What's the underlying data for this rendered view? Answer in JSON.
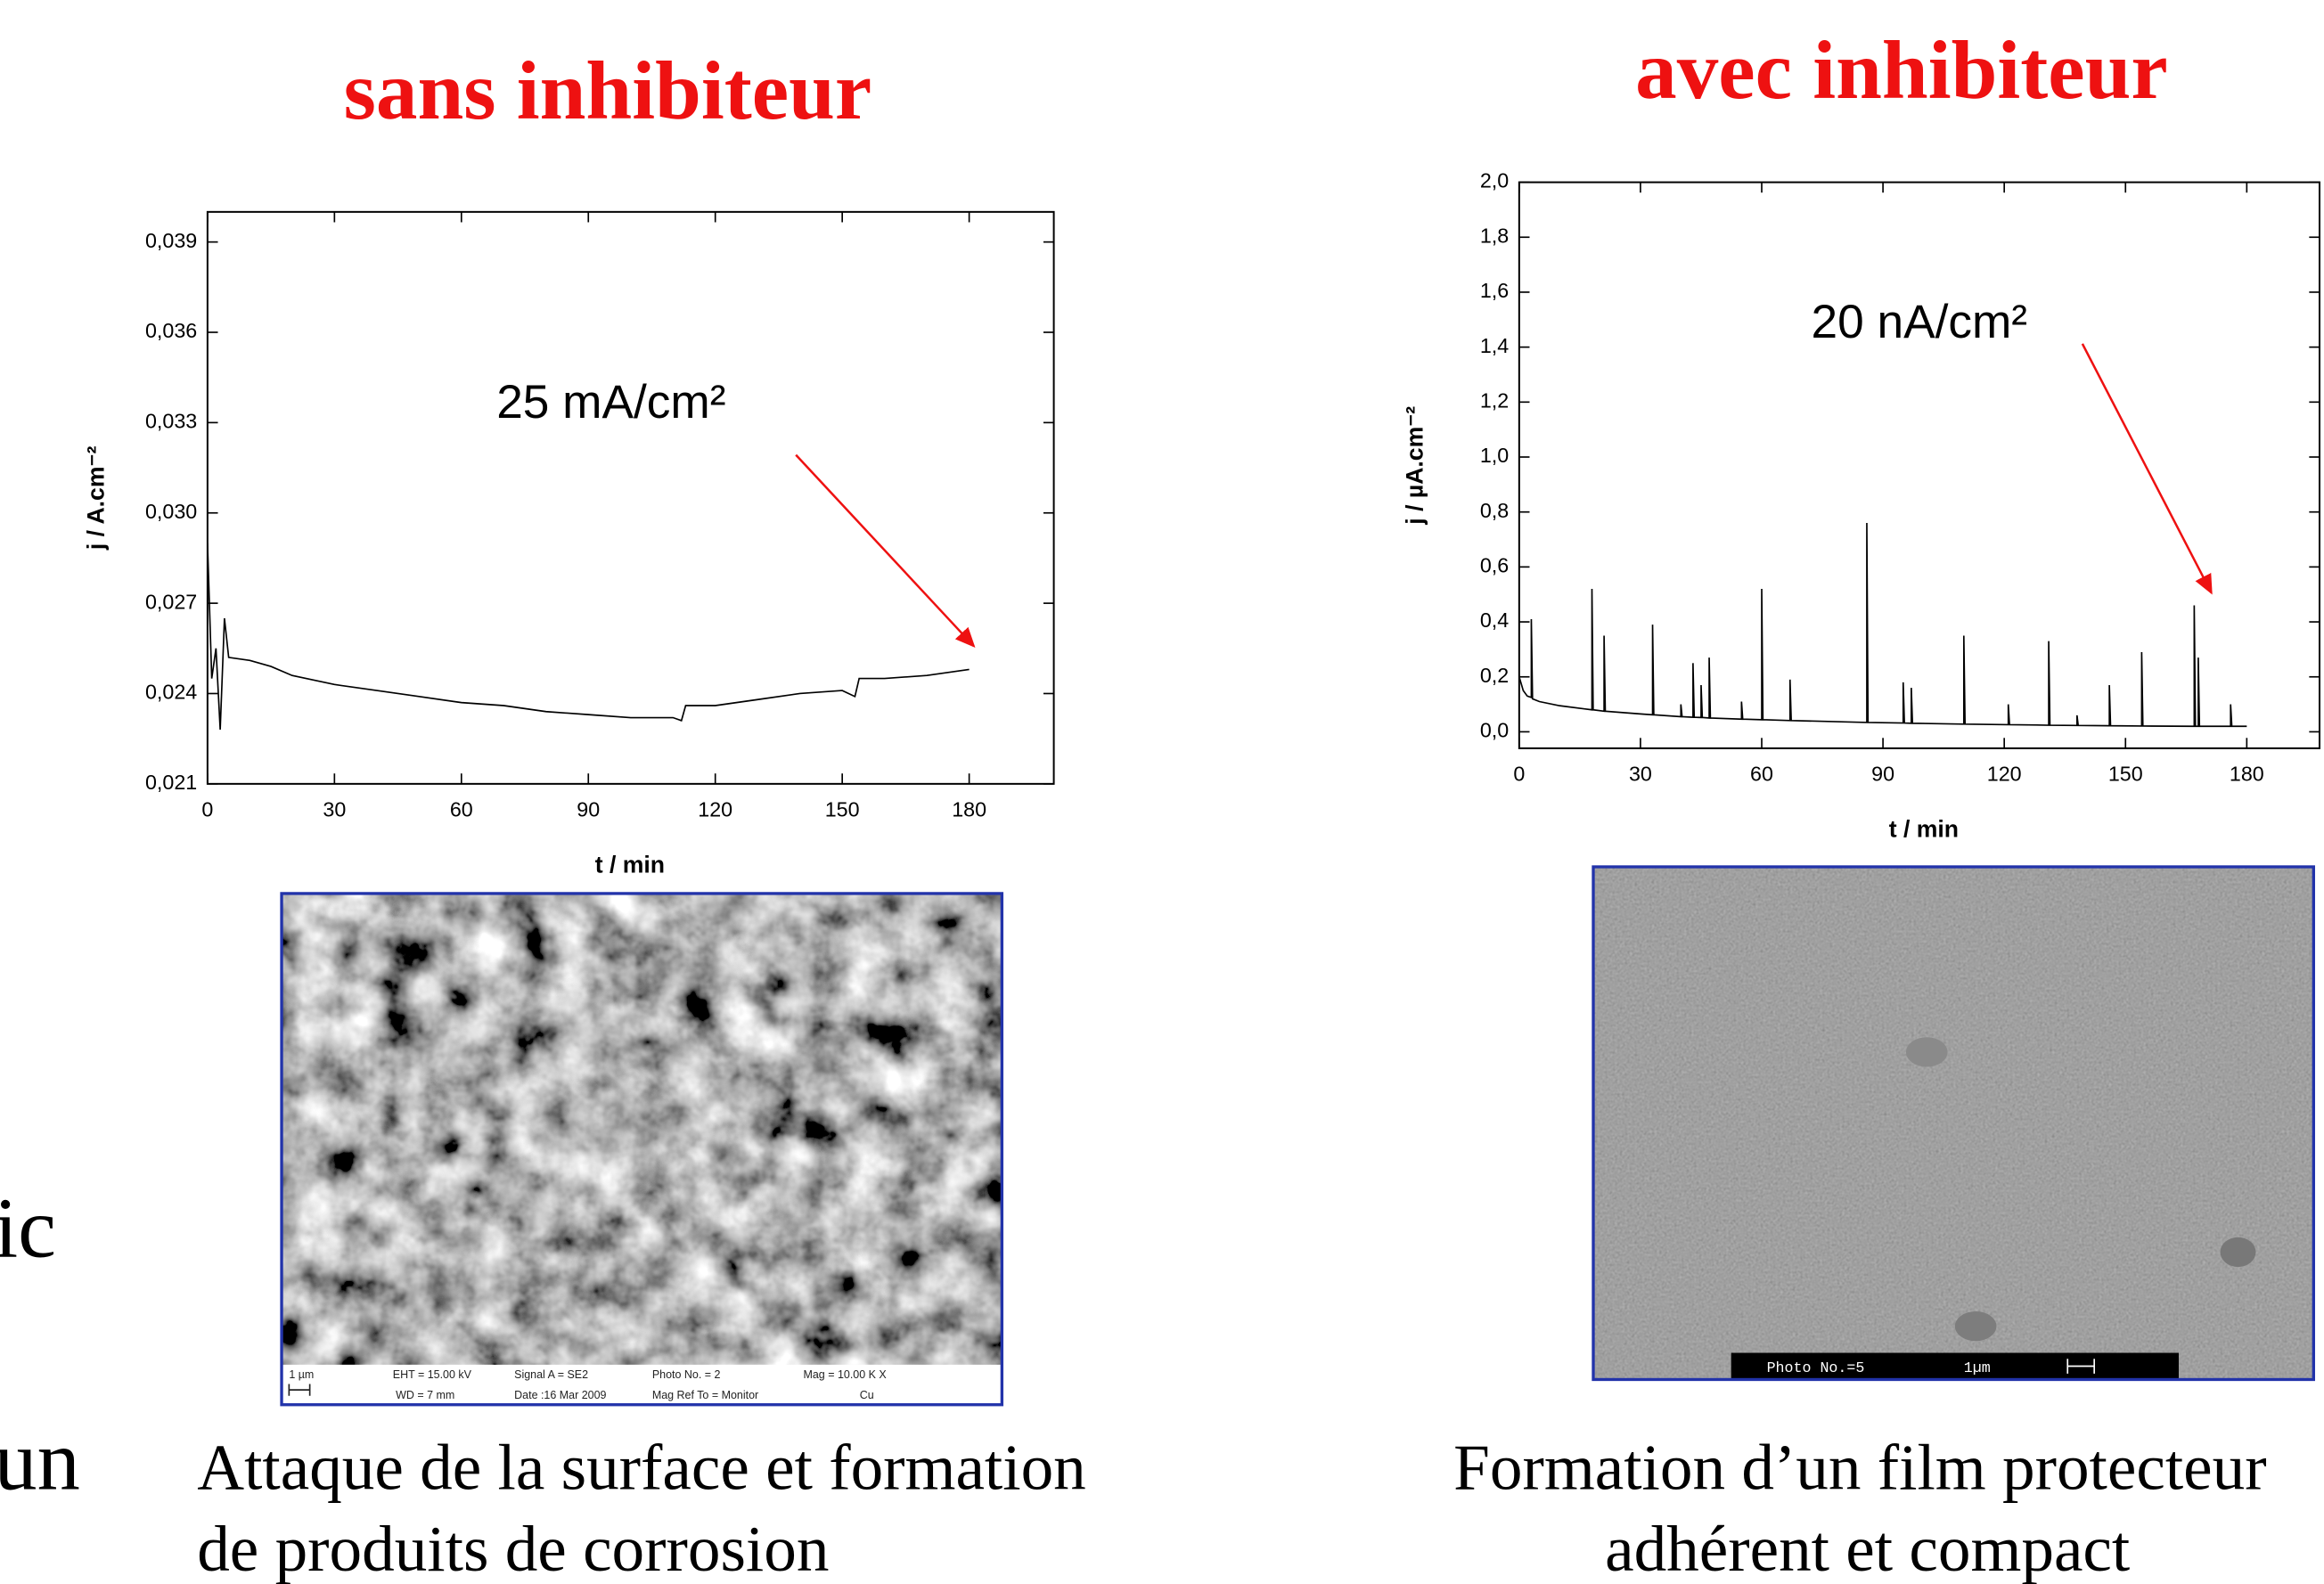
{
  "slide": {
    "fragments": [
      "ic",
      "un"
    ]
  },
  "chart_data": [
    {
      "type": "line",
      "title": "sans inhibiteur",
      "xlabel": "t / min",
      "ylabel": "j / A.cm⁻²",
      "annotation": "25 mA/cm²",
      "x": [
        0,
        1,
        2,
        3,
        4,
        5,
        10,
        15,
        20,
        30,
        40,
        50,
        60,
        70,
        80,
        90,
        100,
        110,
        112,
        113,
        120,
        130,
        140,
        150,
        153,
        154,
        160,
        170,
        180
      ],
      "series": [
        {
          "color": "#000000",
          "values": [
            0.029,
            0.0245,
            0.0255,
            0.0228,
            0.0265,
            0.0252,
            0.0251,
            0.0249,
            0.0246,
            0.0243,
            0.0241,
            0.0239,
            0.0237,
            0.0236,
            0.0234,
            0.0233,
            0.0232,
            0.0232,
            0.0231,
            0.0236,
            0.0236,
            0.0238,
            0.024,
            0.0241,
            0.0239,
            0.0245,
            0.0245,
            0.0246,
            0.0248
          ]
        }
      ],
      "xlim": [
        0,
        200
      ],
      "xticks": [
        0,
        30,
        60,
        90,
        120,
        150,
        180
      ],
      "ylim": [
        0.021,
        0.04
      ],
      "yticks": [
        {
          "value": 0.021,
          "label": "0,021"
        },
        {
          "value": 0.024,
          "label": "0,024"
        },
        {
          "value": 0.027,
          "label": "0,027"
        },
        {
          "value": 0.03,
          "label": "0,030"
        },
        {
          "value": 0.033,
          "label": "0,033"
        },
        {
          "value": 0.036,
          "label": "0,036"
        },
        {
          "value": 0.039,
          "label": "0,039"
        }
      ]
    },
    {
      "type": "line",
      "title": "avec inhibiteur",
      "xlabel": "t / min",
      "ylabel": "j / µA.cm⁻²",
      "annotation": "20 nA/cm²",
      "x": [
        0,
        1,
        2,
        3,
        3,
        3.3,
        5,
        10,
        18,
        18,
        18.3,
        21,
        21,
        21.3,
        30,
        33,
        33,
        33.3,
        40,
        40,
        40.3,
        43,
        43,
        43.3,
        45,
        45,
        45.3,
        47,
        47,
        47.3,
        55,
        55,
        55.3,
        60,
        60,
        60.3,
        67,
        67,
        67.3,
        86,
        86,
        86.3,
        95,
        95,
        95.3,
        97,
        97,
        97.3,
        110,
        110,
        110.3,
        121,
        121,
        121.3,
        131,
        131,
        131.3,
        138,
        138,
        138.3,
        146,
        146,
        146.3,
        154,
        154,
        154.3,
        167,
        167,
        167.3,
        168,
        168,
        168.3,
        176,
        176,
        176.3,
        180
      ],
      "series": [
        {
          "color": "#000000",
          "values": [
            0.2,
            0.15,
            0.13,
            0.125,
            0.41,
            0.12,
            0.11,
            0.095,
            0.08,
            0.52,
            0.08,
            0.075,
            0.35,
            0.075,
            0.065,
            0.062,
            0.39,
            0.062,
            0.055,
            0.1,
            0.055,
            0.053,
            0.25,
            0.053,
            0.052,
            0.17,
            0.052,
            0.05,
            0.27,
            0.05,
            0.046,
            0.11,
            0.046,
            0.044,
            0.52,
            0.044,
            0.041,
            0.19,
            0.041,
            0.034,
            0.76,
            0.034,
            0.032,
            0.18,
            0.032,
            0.031,
            0.16,
            0.031,
            0.028,
            0.35,
            0.028,
            0.026,
            0.1,
            0.026,
            0.024,
            0.33,
            0.024,
            0.023,
            0.06,
            0.023,
            0.022,
            0.17,
            0.022,
            0.021,
            0.29,
            0.021,
            0.02,
            0.46,
            0.02,
            0.02,
            0.27,
            0.02,
            0.02,
            0.1,
            0.02,
            0.02
          ]
        }
      ],
      "xlim": [
        0,
        198
      ],
      "xticks": [
        0,
        30,
        60,
        90,
        120,
        150,
        180
      ],
      "ylim": [
        -0.06,
        2.0
      ],
      "yticks": [
        {
          "value": 0,
          "label": "0,0"
        },
        {
          "value": 0.2,
          "label": "0,2"
        },
        {
          "value": 0.4,
          "label": "0,4"
        },
        {
          "value": 0.6,
          "label": "0,6"
        },
        {
          "value": 0.8,
          "label": "0,8"
        },
        {
          "value": 1.0,
          "label": "1,0"
        },
        {
          "value": 1.2,
          "label": "1,2"
        },
        {
          "value": 1.4,
          "label": "1,4"
        },
        {
          "value": 1.6,
          "label": "1,6"
        },
        {
          "value": 1.8,
          "label": "1,8"
        },
        {
          "value": 2.0,
          "label": "2,0"
        }
      ]
    }
  ],
  "images": [
    {
      "infobar": [
        "1 µm",
        "EHT = 15.00 kV",
        "Signal A = SE2",
        "Photo No. = 2",
        "Mag = 10.00 K X",
        "WD =  7 mm",
        "Date :16 Mar 2009",
        "Mag Ref To = Monitor",
        "Cu"
      ],
      "caption": [
        "Attaque de la surface et formation",
        "de produits de corrosion"
      ]
    },
    {
      "infobar": [
        "Photo No.=5",
        "1µm"
      ],
      "caption": [
        "Formation d’un film protecteur",
        "adhérent et  compact"
      ]
    }
  ]
}
